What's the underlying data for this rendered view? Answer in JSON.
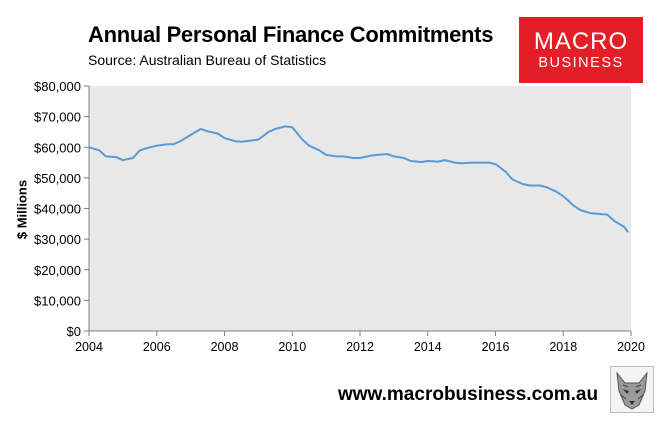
{
  "title": "Annual Personal Finance Commitments",
  "subtitle": "Source: Australian Bureau of Statistics",
  "logo": {
    "line1": "MACRO",
    "line2": "BUSINESS",
    "color": "#e41e26",
    "icon": "wolf-logo-icon"
  },
  "footer": "www.macrobusiness.com.au",
  "chart_data": {
    "type": "line",
    "title": "Annual Personal Finance Commitments",
    "subtitle": "Source: Australian Bureau of Statistics",
    "xlabel": "",
    "ylabel": "$ Millions",
    "xlim": [
      2004,
      2020
    ],
    "ylim": [
      0,
      80000
    ],
    "grid": false,
    "plot_background": "#e8e8e8",
    "line_color": "#5b9bd5",
    "x_ticks": [
      "2004",
      "2006",
      "2008",
      "2010",
      "2012",
      "2014",
      "2016",
      "2018",
      "2020"
    ],
    "y_ticks": [
      "$0",
      "$10,000",
      "$20,000",
      "$30,000",
      "$40,000",
      "$50,000",
      "$60,000",
      "$70,000",
      "$80,000"
    ],
    "series": [
      {
        "x": [
          2004.0,
          2004.3,
          2004.5,
          2004.8,
          2005.0,
          2005.3,
          2005.5,
          2005.8,
          2006.0,
          2006.3,
          2006.5,
          2006.7,
          2007.0,
          2007.3,
          2007.5,
          2007.8,
          2008.0,
          2008.3,
          2008.5,
          2008.8,
          2009.0,
          2009.3,
          2009.5,
          2009.8,
          2010.0,
          2010.3,
          2010.5,
          2010.8,
          2011.0,
          2011.3,
          2011.5,
          2011.8,
          2012.0,
          2012.3,
          2012.5,
          2012.8,
          2013.0,
          2013.3,
          2013.5,
          2013.8,
          2014.0,
          2014.3,
          2014.5,
          2014.8,
          2015.0,
          2015.3,
          2015.5,
          2015.8,
          2016.0,
          2016.3,
          2016.5,
          2016.8,
          2017.0,
          2017.3,
          2017.5,
          2017.8,
          2018.0,
          2018.3,
          2018.5,
          2018.8,
          2019.0,
          2019.3,
          2019.5,
          2019.8,
          2019.9
        ],
        "values": [
          60000,
          59000,
          57000,
          56800,
          55800,
          56500,
          59000,
          60000,
          60500,
          61000,
          61000,
          62000,
          64000,
          66000,
          65200,
          64500,
          63000,
          62000,
          61800,
          62200,
          62500,
          65000,
          66000,
          66800,
          66500,
          62500,
          60500,
          59000,
          57500,
          57000,
          57000,
          56500,
          56500,
          57200,
          57500,
          57800,
          57000,
          56500,
          55500,
          55200,
          55500,
          55300,
          55800,
          55000,
          54800,
          55000,
          55000,
          55000,
          54500,
          52000,
          49500,
          48000,
          47500,
          47500,
          47000,
          45500,
          44000,
          41000,
          39500,
          38500,
          38300,
          38000,
          36000,
          34000,
          32500
        ]
      }
    ]
  }
}
